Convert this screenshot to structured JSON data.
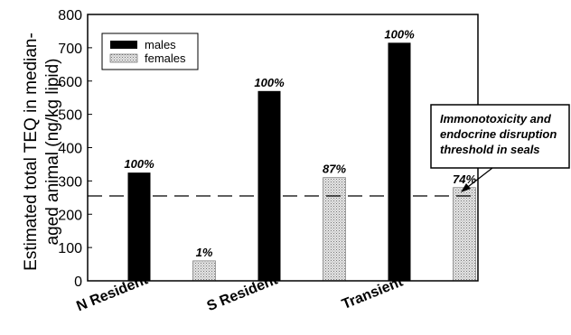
{
  "chart_data": {
    "type": "bar",
    "categories": [
      "N Resident",
      "S Resident",
      "Transient"
    ],
    "series": [
      {
        "name": "males",
        "values": [
          325,
          570,
          715
        ],
        "labels": [
          "100%",
          "100%",
          "100%"
        ],
        "color": "#000000"
      },
      {
        "name": "females",
        "values": [
          60,
          310,
          280
        ],
        "labels": [
          "1%",
          "87%",
          "74%"
        ],
        "color": "#d0d0d0"
      }
    ],
    "title": "",
    "xlabel": "",
    "ylabel": "Estimated total TEQ in median-aged animal (ng/kg lipid)",
    "ylabel_lines": [
      "Estimated total TEQ in median-",
      "aged animal (ng/kg lipid)"
    ],
    "ylim": [
      0,
      800
    ],
    "yticks": [
      0,
      100,
      200,
      300,
      400,
      500,
      600,
      700,
      800
    ],
    "grid": false,
    "legend": "top-left",
    "reference_line": {
      "value": 255,
      "style": "dashed"
    },
    "annotation": {
      "lines": [
        "Immonotoxicity and",
        "endocrine disruption",
        "threshold in seals"
      ]
    }
  }
}
